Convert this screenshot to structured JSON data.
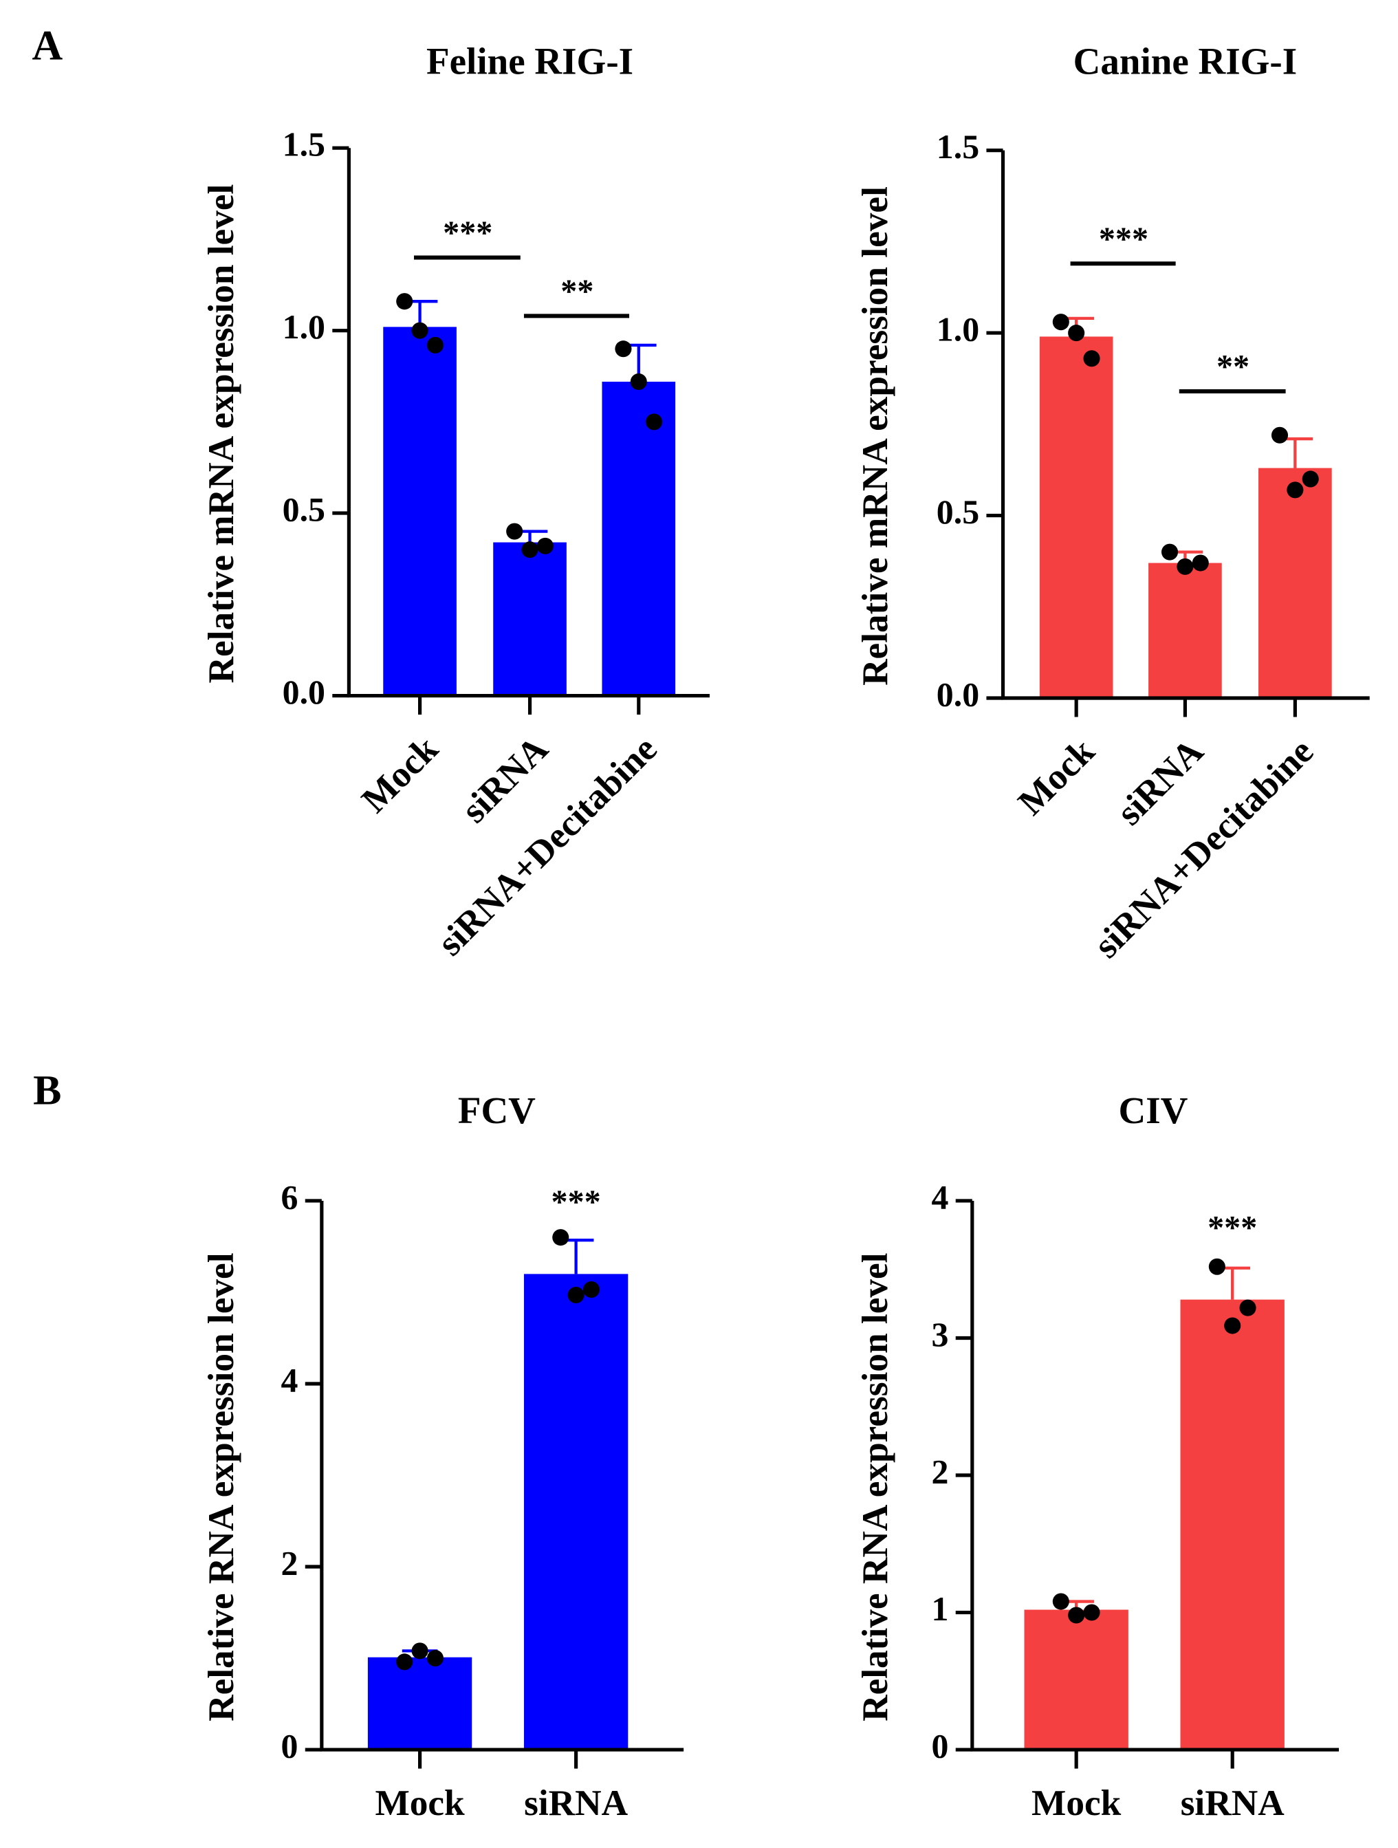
{
  "panel_labels": [
    "A",
    "B"
  ],
  "chart_data": [
    {
      "type": "bar",
      "title": "Feline RIG-I",
      "ylabel": "Relative mRNA expression level",
      "categories": [
        "Mock",
        "siRNA",
        "siRNA+Decitabine"
      ],
      "values": [
        1.01,
        0.42,
        0.86
      ],
      "errors": [
        0.07,
        0.03,
        0.1
      ],
      "points": [
        [
          1.08,
          1.0,
          0.96
        ],
        [
          0.45,
          0.4,
          0.41
        ],
        [
          0.95,
          0.86,
          0.75
        ]
      ],
      "color": "#0000ff",
      "ylim": [
        0,
        1.5
      ],
      "yticks": [
        {
          "value": 0,
          "label": "0.0"
        },
        0.5,
        {
          "value": 1,
          "label": "1.0"
        },
        1.5
      ],
      "annotations": [
        {
          "text": "***",
          "from": "Mock",
          "to": "siRNA",
          "y": 1.2
        },
        {
          "text": "**",
          "from": "siRNA",
          "to": "siRNA+Decitabine",
          "y": 1.04
        }
      ]
    },
    {
      "type": "bar",
      "title": "Canine RIG-I",
      "ylabel": "Relative mRNA expression level",
      "categories": [
        "Mock",
        "siRNA",
        "siRNA+Decitabine"
      ],
      "values": [
        0.99,
        0.37,
        0.63
      ],
      "errors": [
        0.05,
        0.03,
        0.08
      ],
      "points": [
        [
          1.03,
          1.0,
          0.93
        ],
        [
          0.4,
          0.36,
          0.37
        ],
        [
          0.72,
          0.57,
          0.6
        ]
      ],
      "color": "#f44040",
      "ylim": [
        0,
        1.5
      ],
      "yticks": [
        {
          "value": 0,
          "label": "0.0"
        },
        0.5,
        {
          "value": 1,
          "label": "1.0"
        },
        1.5
      ],
      "annotations": [
        {
          "text": "***",
          "from": "Mock",
          "to": "siRNA",
          "y": 1.19
        },
        {
          "text": "**",
          "from": "siRNA",
          "to": "siRNA+Decitabine",
          "y": 0.84
        }
      ]
    },
    {
      "type": "bar",
      "title": "FCV",
      "ylabel": "Relative RNA expression level",
      "categories": [
        "Mock",
        "siRNA"
      ],
      "values": [
        1.01,
        5.2
      ],
      "errors": [
        0.07,
        0.37
      ],
      "points": [
        [
          0.96,
          1.08,
          1.0
        ],
        [
          5.6,
          4.97,
          5.03
        ]
      ],
      "color": "#0000ff",
      "ylim": [
        0,
        6
      ],
      "yticks": [
        0,
        2,
        4,
        6
      ],
      "annotations": [
        {
          "text": "***",
          "from": "siRNA",
          "to": "siRNA",
          "y": 5.95
        }
      ]
    },
    {
      "type": "bar",
      "title": "CIV",
      "ylabel": "Relative RNA expression level",
      "categories": [
        "Mock",
        "siRNA"
      ],
      "values": [
        1.02,
        3.28
      ],
      "errors": [
        0.06,
        0.23
      ],
      "points": [
        [
          1.08,
          0.98,
          1.0
        ],
        [
          3.52,
          3.09,
          3.22
        ]
      ],
      "color": "#f44040",
      "ylim": [
        0,
        4
      ],
      "yticks": [
        0,
        1,
        2,
        3,
        4
      ],
      "annotations": [
        {
          "text": "***",
          "from": "siRNA",
          "to": "siRNA",
          "y": 3.78
        }
      ]
    }
  ]
}
